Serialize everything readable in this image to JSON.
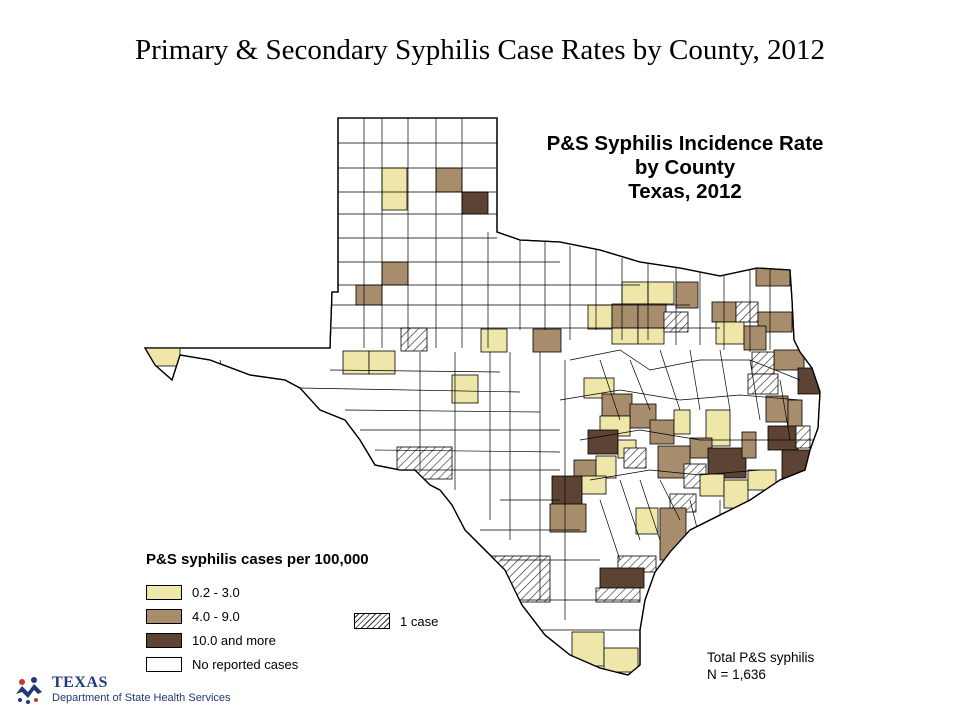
{
  "slide": {
    "title": "Primary & Secondary Syphilis Case Rates by County, 2012"
  },
  "map": {
    "title_lines": [
      "P&S Syphilis Incidence Rate",
      "by County",
      "Texas, 2012"
    ],
    "colors": {
      "no_cases": "#ffffff",
      "low": "#efe6aa",
      "mid": "#a88d6c",
      "high": "#5c4333",
      "hatch": "#333333",
      "outline": "#000000"
    }
  },
  "legend": {
    "title": "P&S syphilis cases per 100,000",
    "items": [
      {
        "label": "0.2 - 3.0",
        "color": "#efe6aa"
      },
      {
        "label": "4.0 - 9.0",
        "color": "#a88d6c"
      },
      {
        "label": "10.0 and more",
        "color": "#5c4333"
      },
      {
        "label": "No reported cases",
        "color": "#ffffff"
      }
    ],
    "one_case_label": "1 case"
  },
  "totals": {
    "line1": "Total P&S syphilis",
    "line2": "N = 1,636"
  },
  "logo": {
    "line1": "TEXAS",
    "line2": "Department of State Health Services"
  }
}
